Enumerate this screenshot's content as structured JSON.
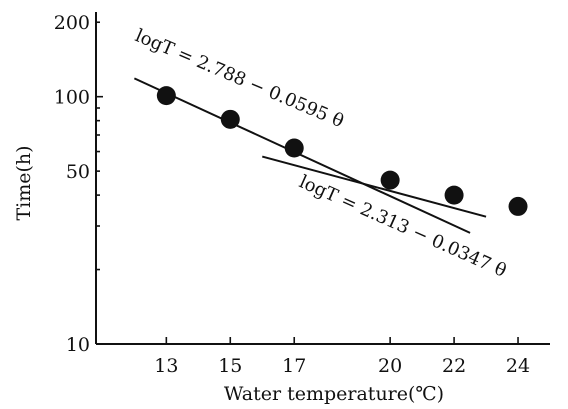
{
  "chart_data": {
    "type": "scatter",
    "title": "",
    "xlabel": "Water temperature(℃)",
    "ylabel": "Time(h)",
    "x_ticks": [
      13,
      15,
      17,
      20,
      22,
      24
    ],
    "y_ticks": [
      10,
      50,
      100,
      200
    ],
    "y_scale": "log",
    "xlim": [
      10.8,
      25
    ],
    "ylim": [
      10,
      220
    ],
    "points": [
      {
        "x": 13,
        "y": 101
      },
      {
        "x": 15,
        "y": 81
      },
      {
        "x": 17,
        "y": 62
      },
      {
        "x": 20,
        "y": 46
      },
      {
        "x": 22,
        "y": 40
      },
      {
        "x": 24,
        "y": 36
      }
    ],
    "fit_lines": [
      {
        "label": "logT = 2.788 − 0.0595 θ",
        "x_start": 12,
        "x_end": 22.5,
        "intercept": 2.788,
        "slope": -0.0595
      },
      {
        "label": "logT = 2.313 − 0.0347 θ",
        "x_start": 16,
        "x_end": 23,
        "intercept": 2.313,
        "slope": -0.0347
      }
    ],
    "grid": false,
    "legend": "none"
  }
}
